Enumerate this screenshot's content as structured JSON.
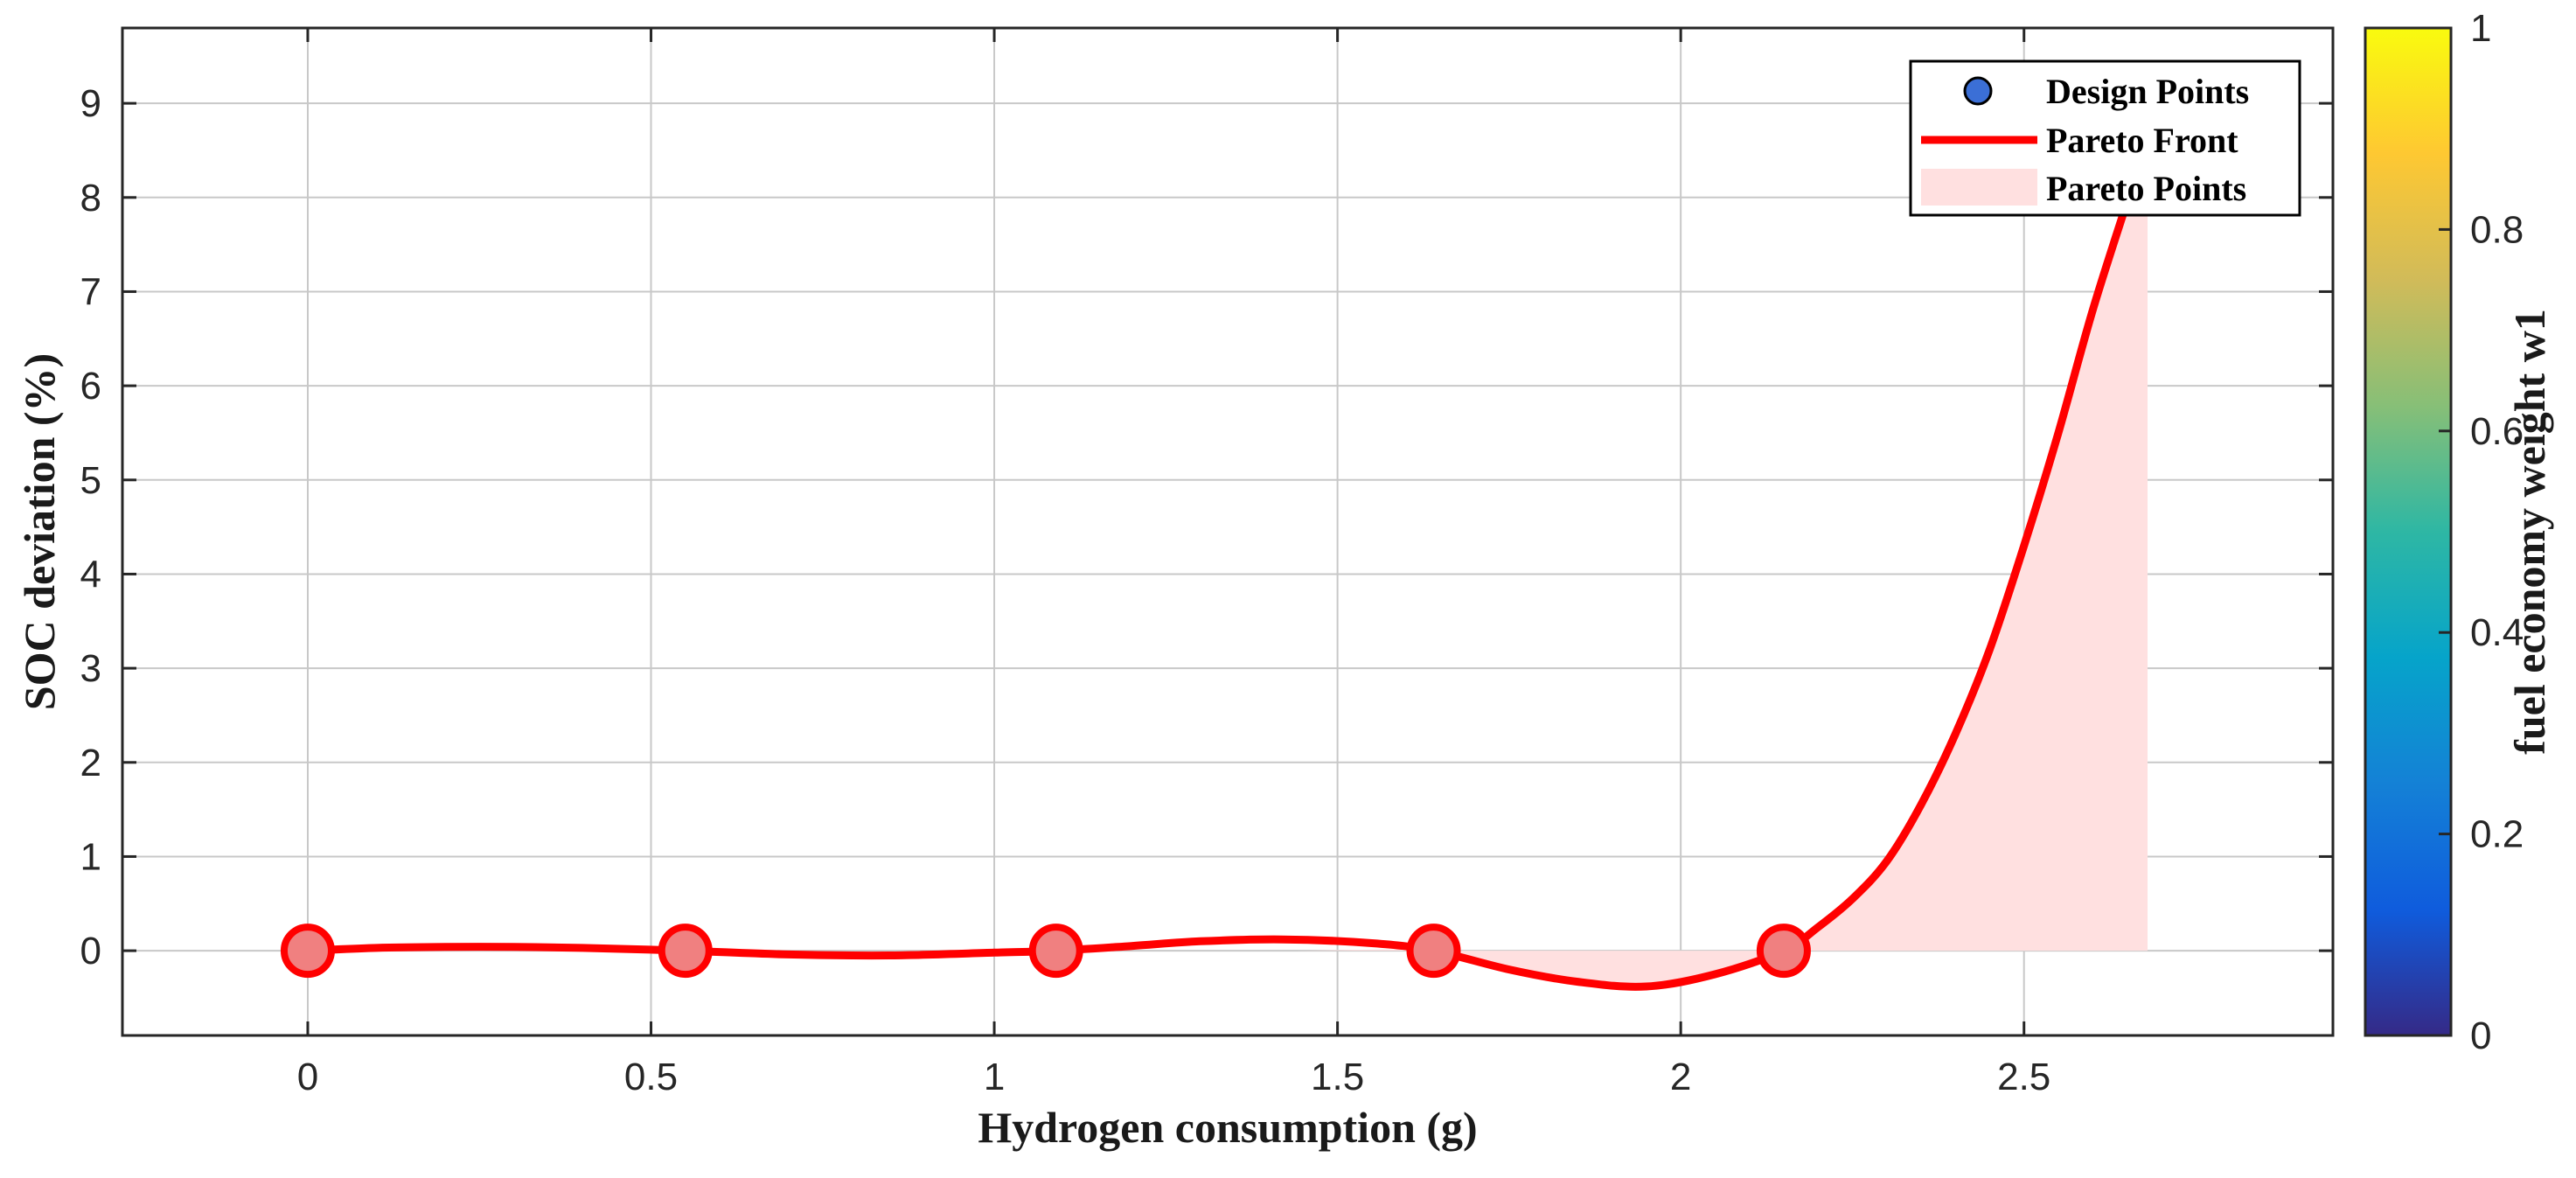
{
  "chart_data": {
    "type": "line",
    "title": "",
    "xlabel": "Hydrogen consumption (g)",
    "ylabel": "SOC deviation (%)",
    "xlim": [
      -0.27,
      2.95
    ],
    "ylim": [
      -0.9,
      9.8
    ],
    "xticks": [
      0,
      0.5,
      1,
      1.5,
      2,
      2.5
    ],
    "xtick_labels": [
      "0",
      "0.5",
      "1",
      "1.5",
      "2",
      "2.5"
    ],
    "yticks": [
      0,
      1,
      2,
      3,
      4,
      5,
      6,
      7,
      8,
      9
    ],
    "ytick_labels": [
      "0",
      "1",
      "2",
      "3",
      "4",
      "5",
      "6",
      "7",
      "8",
      "9"
    ],
    "grid": true,
    "legend": {
      "placement": "top-right",
      "entries": [
        "Design Points",
        "Pareto Front",
        "Pareto Points"
      ]
    },
    "series": [
      {
        "name": "Design Points",
        "kind": "scatter",
        "color": "#f08080",
        "edge_color": "#ff0000",
        "x": [
          0,
          0.55,
          1.09,
          1.64,
          2.15
        ],
        "y": [
          0,
          0,
          0,
          0,
          0
        ]
      },
      {
        "name": "Pareto Front",
        "kind": "line",
        "color": "#ff0000",
        "x": [
          0,
          0.1,
          0.2,
          0.3,
          0.4,
          0.55,
          0.7,
          0.85,
          1.0,
          1.09,
          1.2,
          1.3,
          1.42,
          1.55,
          1.64,
          1.75,
          1.85,
          1.95,
          2.05,
          2.15,
          2.2,
          2.25,
          2.3,
          2.35,
          2.4,
          2.45,
          2.5,
          2.55,
          2.6,
          2.65
        ],
        "y": [
          0,
          0.03,
          0.04,
          0.04,
          0.03,
          0.0,
          -0.04,
          -0.05,
          -0.02,
          0.0,
          0.05,
          0.1,
          0.12,
          0.08,
          0.0,
          -0.2,
          -0.33,
          -0.38,
          -0.25,
          0.0,
          0.25,
          0.55,
          0.95,
          1.55,
          2.3,
          3.2,
          4.3,
          5.5,
          6.8,
          7.95
        ]
      },
      {
        "name": "Pareto Points",
        "kind": "area",
        "color": "#ffe0e0",
        "x": [
          0,
          0.3,
          0.55,
          0.85,
          1.09,
          1.42,
          1.64,
          1.75,
          1.85,
          1.95,
          2.05,
          2.15,
          2.2,
          2.25,
          2.3,
          2.35,
          2.4,
          2.45,
          2.5,
          2.55,
          2.6,
          2.65,
          2.68
        ],
        "y": [
          0,
          0,
          0,
          0,
          0,
          0,
          0,
          -0.2,
          -0.33,
          -0.38,
          -0.25,
          0.0,
          0.25,
          0.55,
          0.95,
          1.55,
          2.3,
          3.2,
          4.3,
          5.5,
          6.8,
          7.95,
          7.95
        ],
        "baseline": 0
      }
    ],
    "colorbar": {
      "label": "fuel economy weight w1",
      "range": [
        0,
        1
      ],
      "ticks": [
        0,
        0.2,
        0.4,
        0.6,
        0.8,
        1
      ],
      "tick_labels": [
        "0",
        "0.2",
        "0.4",
        "0.6",
        "0.8",
        "1"
      ],
      "colormap": "parula",
      "colors": [
        "#352a87",
        "#0f5cdd",
        "#1481d6",
        "#06a4ca",
        "#2eb7a4",
        "#87bf77",
        "#d1bb59",
        "#fec832",
        "#f9fb0e"
      ]
    }
  }
}
